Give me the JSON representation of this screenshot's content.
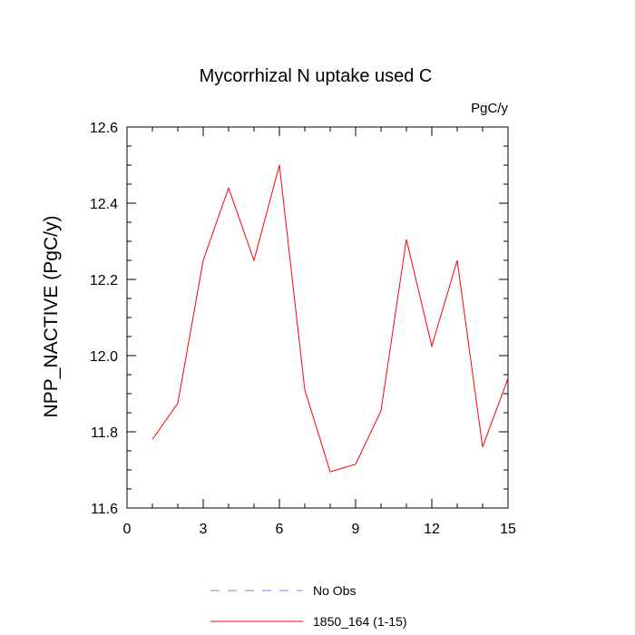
{
  "chart_data": {
    "type": "line",
    "title": "Mycorrhizal N uptake used C",
    "units": "PgC/y",
    "ylabel": "NPP_NACTIVE  (PgC/y)",
    "xlabel": "",
    "xlim": [
      0,
      15
    ],
    "ylim": [
      11.6,
      12.6
    ],
    "x_ticks": [
      0,
      3,
      6,
      9,
      12,
      15
    ],
    "y_ticks": [
      11.6,
      11.8,
      12.0,
      12.2,
      12.4,
      12.6
    ],
    "x_tick_labels": [
      "0",
      "3",
      "6",
      "9",
      "12",
      "15"
    ],
    "y_tick_labels": [
      "11.6",
      "11.8",
      "12.0",
      "12.2",
      "12.4",
      "12.6"
    ],
    "grid": false,
    "series": [
      {
        "name": "1850_164 (1-15)",
        "color": "#ff0000",
        "style": "solid",
        "x": [
          1,
          2,
          3,
          4,
          5,
          6,
          7,
          8,
          9,
          10,
          11,
          12,
          13,
          14,
          15
        ],
        "values": [
          11.78,
          11.875,
          12.25,
          12.44,
          12.25,
          12.5,
          11.91,
          11.695,
          11.715,
          11.855,
          12.305,
          12.025,
          12.25,
          11.76,
          11.94
        ]
      }
    ],
    "legend": [
      {
        "label": "No Obs",
        "color": "#7f7fff",
        "style": "dashed"
      },
      {
        "label": "1850_164 (1-15)",
        "color": "#ff0000",
        "style": "solid"
      }
    ],
    "legend_position": "bottom"
  }
}
